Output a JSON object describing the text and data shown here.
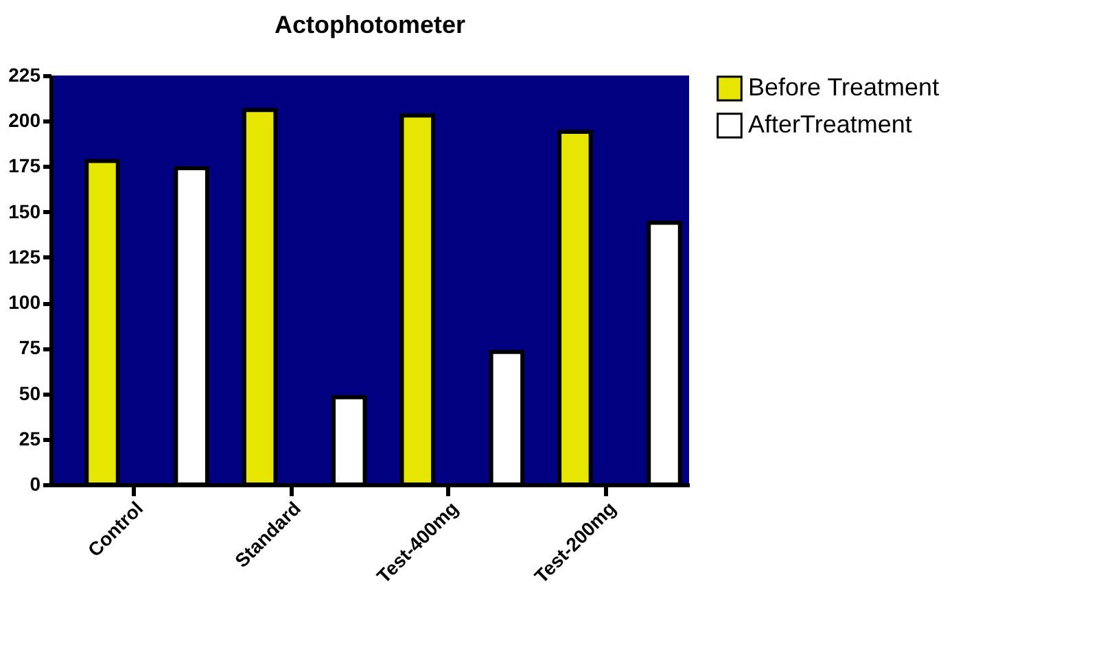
{
  "chart_data": {
    "type": "bar",
    "title": "Actophotometer",
    "categories": [
      "Control",
      "Standard",
      "Test-400mg",
      "Test-200mg"
    ],
    "series": [
      {
        "name": "Before Treatment",
        "color": "#e6e600",
        "values": [
          178,
          206,
          203,
          194
        ]
      },
      {
        "name": "AfterTreatment",
        "color": "#ffffff",
        "values": [
          174,
          48,
          73,
          144
        ]
      }
    ],
    "ylim": [
      0,
      225
    ],
    "yticks": [
      0,
      25,
      50,
      75,
      100,
      125,
      150,
      175,
      200,
      225
    ],
    "grid": false,
    "legend": "top right"
  }
}
